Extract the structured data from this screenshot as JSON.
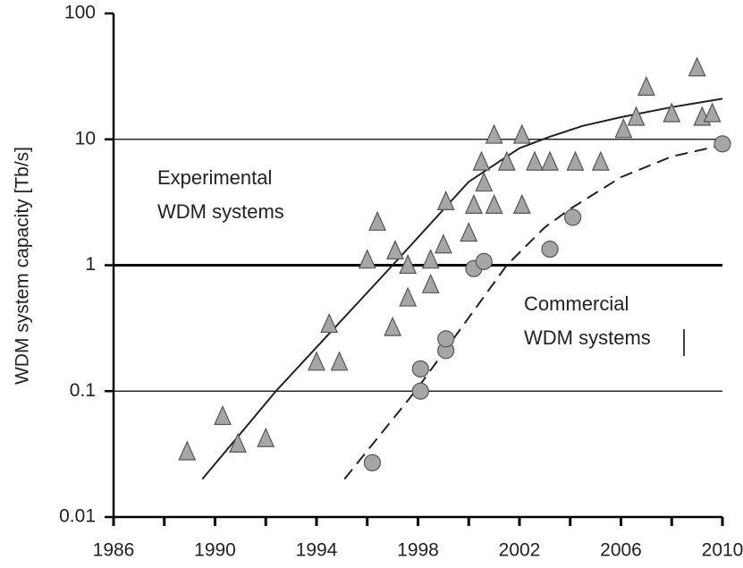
{
  "chart_data": {
    "type": "scatter",
    "ylabel": "WDM system capacity [Tb/s]",
    "xlim": [
      1986,
      2010
    ],
    "ylim": [
      0.01,
      100
    ],
    "log_y": true,
    "xticks": [
      1986,
      1990,
      1994,
      1998,
      2002,
      2006,
      2010
    ],
    "xminorticks": [
      1988,
      1992,
      1996,
      2000,
      2004,
      2008
    ],
    "yticks": [
      0.01,
      0.1,
      1,
      10,
      100
    ],
    "grid": true,
    "strong_grid": 1,
    "series": [
      {
        "marker": "triangle",
        "color": "#a6a6a6",
        "x": [
          1988.9,
          1990.3,
          1990.9,
          1992.0,
          1994.0,
          1994.5,
          1994.9,
          1996.0,
          1996.4,
          1997.0,
          1997.1,
          1997.6,
          1997.6,
          1998.5,
          1998.5,
          1999.0,
          1999.1,
          2000.0,
          2000.2,
          2000.5,
          2000.6,
          2001.0,
          2001.0,
          2001.5,
          2002.1,
          2002.1,
          2002.6,
          2003.2,
          2004.2,
          2005.2,
          2006.1,
          2006.6,
          2007.0,
          2008.0,
          2009.0,
          2009.2,
          2009.6
        ],
        "values": [
          0.033,
          0.063,
          0.038,
          0.042,
          0.17,
          0.34,
          0.17,
          1.1,
          2.2,
          0.32,
          1.3,
          0.55,
          1.0,
          0.7,
          1.1,
          1.45,
          3.2,
          1.8,
          3.0,
          6.6,
          4.5,
          10.8,
          3.0,
          6.6,
          10.8,
          3.0,
          6.6,
          6.6,
          6.6,
          6.6,
          12,
          15,
          26,
          16,
          37,
          15,
          16
        ]
      },
      {
        "marker": "circle",
        "color": "#a6a6a6",
        "x": [
          1996.2,
          1998.1,
          1998.1,
          1999.1,
          1999.1,
          2000.2,
          2000.6,
          2003.2,
          2004.1,
          2010.0
        ],
        "values": [
          0.027,
          0.1,
          0.15,
          0.21,
          0.26,
          0.94,
          1.07,
          1.34,
          2.4,
          9.2
        ]
      }
    ],
    "fits": [
      {
        "style": "solid",
        "x": [
          1989.5,
          1992.4,
          1997.0,
          2000.0,
          2002.0,
          2003.2,
          2004.5,
          2006.0,
          2008.0,
          2010.0
        ],
        "values": [
          0.02,
          0.1,
          1,
          4.6,
          8.5,
          10.5,
          12.8,
          15,
          18,
          21
        ]
      },
      {
        "style": "dashed",
        "x": [
          1995.1,
          1997.9,
          2001.5,
          2003.0,
          2004.0,
          2006.0,
          2008.0,
          2010.0
        ],
        "values": [
          0.02,
          0.1,
          1,
          2,
          2.8,
          5,
          7.3,
          9
        ]
      }
    ],
    "annotations": [
      [
        "Experimental",
        "WDM systems"
      ],
      [
        "Commercial",
        "WDM systems"
      ]
    ]
  }
}
